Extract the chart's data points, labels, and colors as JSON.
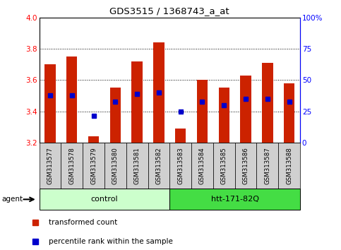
{
  "title": "GDS3515 / 1368743_a_at",
  "samples": [
    "GSM313577",
    "GSM313578",
    "GSM313579",
    "GSM313580",
    "GSM313581",
    "GSM313582",
    "GSM313583",
    "GSM313584",
    "GSM313585",
    "GSM313586",
    "GSM313587",
    "GSM313588"
  ],
  "red_values": [
    3.7,
    3.75,
    3.24,
    3.55,
    3.72,
    3.84,
    3.29,
    3.6,
    3.55,
    3.63,
    3.71,
    3.58
  ],
  "blue_values": [
    3.5,
    3.5,
    3.37,
    3.46,
    3.51,
    3.52,
    3.4,
    3.46,
    3.44,
    3.48,
    3.48,
    3.46
  ],
  "ymin": 3.2,
  "ymax": 4.0,
  "yticks": [
    3.2,
    3.4,
    3.6,
    3.8,
    4.0
  ],
  "right_yticks_pct": [
    0,
    25,
    50,
    75,
    100
  ],
  "right_yticklabels": [
    "0",
    "25",
    "50",
    "75",
    "100%"
  ],
  "groups": [
    {
      "label": "control",
      "start": 0,
      "end": 5,
      "color": "#ccffcc"
    },
    {
      "label": "htt-171-82Q",
      "start": 6,
      "end": 11,
      "color": "#44dd44"
    }
  ],
  "agent_label": "agent",
  "bar_width": 0.5,
  "red_color": "#cc2200",
  "blue_color": "#0000cc",
  "xtick_bg": "#d0d0d0",
  "legend_red": "transformed count",
  "legend_blue": "percentile rank within the sample"
}
